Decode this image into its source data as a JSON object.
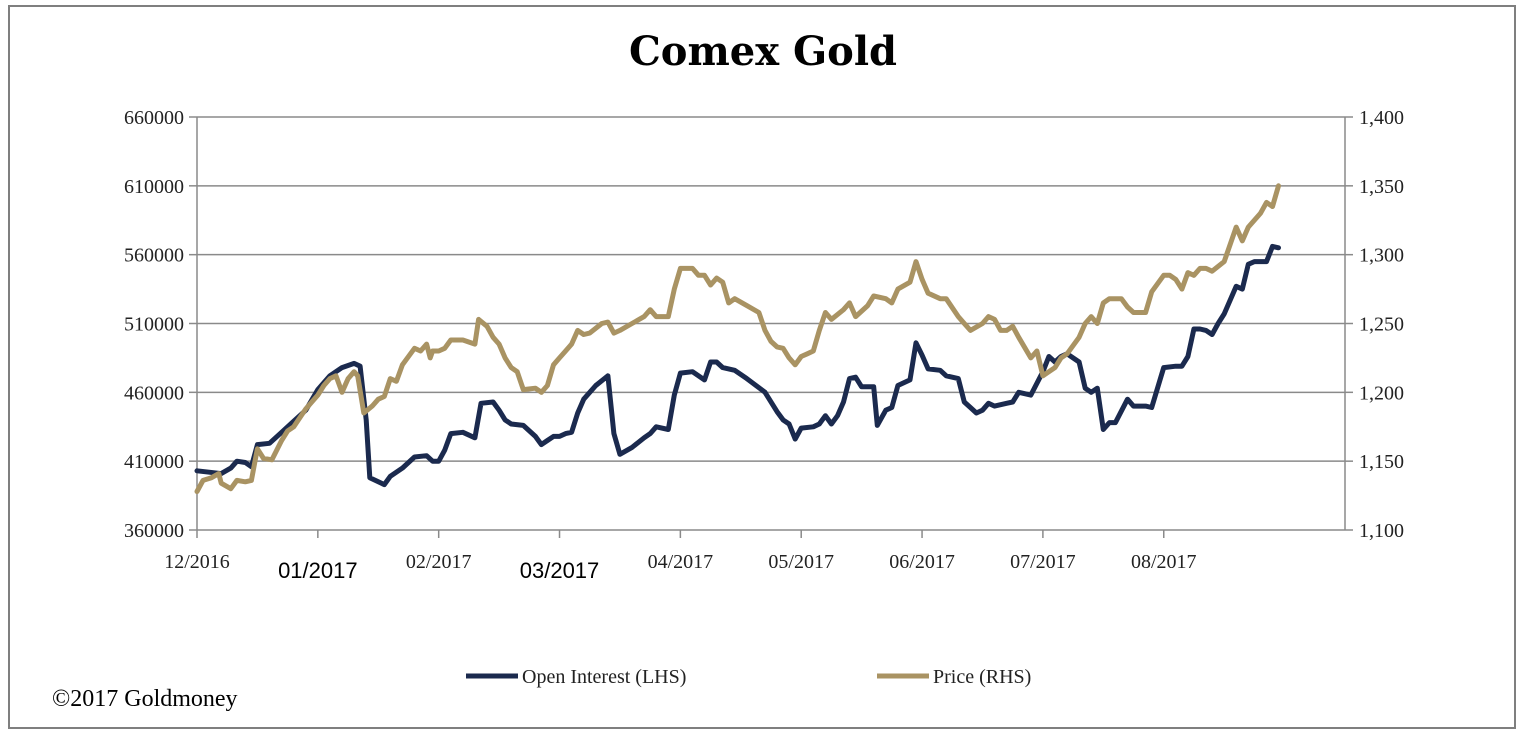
{
  "footer": {
    "copyright": "©2017 Goldmoney"
  },
  "chart_data": {
    "type": "line",
    "title": "Comex Gold",
    "xlabel": "",
    "ylabel_left": "",
    "ylabel_right": "",
    "grid": true,
    "legend_position": "bottom",
    "left_axis": {
      "ylim": [
        360000,
        660000
      ],
      "ticks": [
        "360000",
        "410000",
        "460000",
        "510000",
        "560000",
        "610000",
        "660000"
      ]
    },
    "right_axis": {
      "ylim": [
        1100,
        1400
      ],
      "ticks": [
        "1,100",
        "1,150",
        "1,200",
        "1,250",
        "1,300",
        "1,350",
        "1,400"
      ]
    },
    "x_ticks": [
      {
        "label": "12/2016",
        "month": 0,
        "style": "serif"
      },
      {
        "label": "01/2017",
        "month": 1,
        "style": "sans"
      },
      {
        "label": "02/2017",
        "month": 2,
        "style": "serif"
      },
      {
        "label": "03/2017",
        "month": 3,
        "style": "sans"
      },
      {
        "label": "04/2017",
        "month": 4,
        "style": "serif"
      },
      {
        "label": "05/2017",
        "month": 5,
        "style": "serif"
      },
      {
        "label": "06/2017",
        "month": 6,
        "style": "serif"
      },
      {
        "label": "07/2017",
        "month": 7,
        "style": "serif"
      },
      {
        "label": "08/2017",
        "month": 8,
        "style": "serif"
      }
    ],
    "x_range_months": [
      0,
      9.5
    ],
    "series": [
      {
        "name": "Open Interest (LHS)",
        "axis": "left",
        "color": "#1b2a4e",
        "points": [
          [
            0.0,
            403000
          ],
          [
            0.1,
            402000
          ],
          [
            0.2,
            401000
          ],
          [
            0.28,
            405000
          ],
          [
            0.33,
            410000
          ],
          [
            0.4,
            409000
          ],
          [
            0.45,
            406000
          ],
          [
            0.5,
            422000
          ],
          [
            0.6,
            423000
          ],
          [
            0.7,
            431000
          ],
          [
            0.8,
            439000
          ],
          [
            0.9,
            447000
          ],
          [
            1.0,
            462000
          ],
          [
            1.1,
            472000
          ],
          [
            1.2,
            478000
          ],
          [
            1.3,
            481000
          ],
          [
            1.35,
            479000
          ],
          [
            1.4,
            440000
          ],
          [
            1.43,
            398000
          ],
          [
            1.5,
            395000
          ],
          [
            1.55,
            393000
          ],
          [
            1.6,
            399000
          ],
          [
            1.7,
            405000
          ],
          [
            1.8,
            413000
          ],
          [
            1.9,
            414000
          ],
          [
            1.95,
            410000
          ],
          [
            2.0,
            410000
          ],
          [
            2.05,
            418000
          ],
          [
            2.1,
            430000
          ],
          [
            2.2,
            431000
          ],
          [
            2.3,
            427000
          ],
          [
            2.35,
            452000
          ],
          [
            2.45,
            453000
          ],
          [
            2.5,
            447000
          ],
          [
            2.55,
            440000
          ],
          [
            2.6,
            437000
          ],
          [
            2.7,
            436000
          ],
          [
            2.8,
            428000
          ],
          [
            2.85,
            422000
          ],
          [
            2.9,
            425000
          ],
          [
            2.95,
            428000
          ],
          [
            3.0,
            428000
          ],
          [
            3.05,
            430000
          ],
          [
            3.1,
            431000
          ],
          [
            3.15,
            445000
          ],
          [
            3.2,
            455000
          ],
          [
            3.3,
            465000
          ],
          [
            3.4,
            472000
          ],
          [
            3.45,
            430000
          ],
          [
            3.5,
            415000
          ],
          [
            3.6,
            420000
          ],
          [
            3.7,
            427000
          ],
          [
            3.75,
            430000
          ],
          [
            3.8,
            435000
          ],
          [
            3.9,
            433000
          ],
          [
            3.95,
            458000
          ],
          [
            4.0,
            474000
          ],
          [
            4.1,
            475000
          ],
          [
            4.2,
            469000
          ],
          [
            4.25,
            482000
          ],
          [
            4.3,
            482000
          ],
          [
            4.35,
            478000
          ],
          [
            4.45,
            476000
          ],
          [
            4.55,
            470000
          ],
          [
            4.7,
            460000
          ],
          [
            4.8,
            446000
          ],
          [
            4.85,
            440000
          ],
          [
            4.9,
            437000
          ],
          [
            4.95,
            426000
          ],
          [
            5.0,
            434000
          ],
          [
            5.1,
            435000
          ],
          [
            5.15,
            437000
          ],
          [
            5.2,
            443000
          ],
          [
            5.25,
            437000
          ],
          [
            5.3,
            443000
          ],
          [
            5.35,
            453000
          ],
          [
            5.4,
            470000
          ],
          [
            5.45,
            471000
          ],
          [
            5.5,
            464000
          ],
          [
            5.6,
            464000
          ],
          [
            5.63,
            436000
          ],
          [
            5.7,
            447000
          ],
          [
            5.75,
            449000
          ],
          [
            5.8,
            465000
          ],
          [
            5.9,
            469000
          ],
          [
            5.95,
            496000
          ],
          [
            6.0,
            487000
          ],
          [
            6.05,
            477000
          ],
          [
            6.15,
            476000
          ],
          [
            6.2,
            472000
          ],
          [
            6.3,
            470000
          ],
          [
            6.35,
            453000
          ],
          [
            6.4,
            449000
          ],
          [
            6.45,
            445000
          ],
          [
            6.5,
            447000
          ],
          [
            6.55,
            452000
          ],
          [
            6.6,
            450000
          ],
          [
            6.7,
            452000
          ],
          [
            6.75,
            453000
          ],
          [
            6.8,
            460000
          ],
          [
            6.9,
            458000
          ],
          [
            7.0,
            475000
          ],
          [
            7.05,
            486000
          ],
          [
            7.1,
            482000
          ],
          [
            7.15,
            486000
          ],
          [
            7.2,
            488000
          ],
          [
            7.3,
            482000
          ],
          [
            7.35,
            463000
          ],
          [
            7.4,
            460000
          ],
          [
            7.45,
            463000
          ],
          [
            7.5,
            433000
          ],
          [
            7.55,
            438000
          ],
          [
            7.6,
            438000
          ],
          [
            7.7,
            455000
          ],
          [
            7.75,
            450000
          ],
          [
            7.85,
            450000
          ],
          [
            7.9,
            449000
          ],
          [
            8.0,
            478000
          ],
          [
            8.1,
            479000
          ],
          [
            8.15,
            479000
          ],
          [
            8.2,
            486000
          ],
          [
            8.25,
            506000
          ],
          [
            8.3,
            506000
          ],
          [
            8.35,
            505000
          ],
          [
            8.4,
            502000
          ],
          [
            8.45,
            510000
          ],
          [
            8.5,
            517000
          ],
          [
            8.6,
            537000
          ],
          [
            8.65,
            535000
          ],
          [
            8.7,
            553000
          ],
          [
            8.75,
            555000
          ],
          [
            8.85,
            555000
          ],
          [
            8.9,
            566000
          ],
          [
            8.95,
            565000
          ]
        ]
      },
      {
        "name": "Price (RHS)",
        "axis": "right",
        "color": "#a99363",
        "points": [
          [
            0.0,
            1128
          ],
          [
            0.05,
            1136
          ],
          [
            0.12,
            1138
          ],
          [
            0.18,
            1141
          ],
          [
            0.2,
            1134
          ],
          [
            0.28,
            1130
          ],
          [
            0.33,
            1136
          ],
          [
            0.4,
            1135
          ],
          [
            0.45,
            1136
          ],
          [
            0.48,
            1150
          ],
          [
            0.5,
            1159
          ],
          [
            0.55,
            1152
          ],
          [
            0.62,
            1151
          ],
          [
            0.7,
            1165
          ],
          [
            0.75,
            1172
          ],
          [
            0.8,
            1175
          ],
          [
            0.9,
            1188
          ],
          [
            0.95,
            1193
          ],
          [
            1.0,
            1198
          ],
          [
            1.05,
            1205
          ],
          [
            1.1,
            1210
          ],
          [
            1.15,
            1212
          ],
          [
            1.2,
            1200
          ],
          [
            1.25,
            1210
          ],
          [
            1.3,
            1215
          ],
          [
            1.33,
            1212
          ],
          [
            1.38,
            1185
          ],
          [
            1.45,
            1190
          ],
          [
            1.5,
            1195
          ],
          [
            1.55,
            1197
          ],
          [
            1.6,
            1210
          ],
          [
            1.65,
            1208
          ],
          [
            1.7,
            1220
          ],
          [
            1.8,
            1232
          ],
          [
            1.85,
            1230
          ],
          [
            1.9,
            1235
          ],
          [
            1.93,
            1225
          ],
          [
            1.95,
            1230
          ],
          [
            2.0,
            1230
          ],
          [
            2.05,
            1232
          ],
          [
            2.1,
            1238
          ],
          [
            2.2,
            1238
          ],
          [
            2.3,
            1235
          ],
          [
            2.33,
            1253
          ],
          [
            2.4,
            1248
          ],
          [
            2.45,
            1240
          ],
          [
            2.5,
            1235
          ],
          [
            2.55,
            1225
          ],
          [
            2.6,
            1218
          ],
          [
            2.65,
            1215
          ],
          [
            2.7,
            1202
          ],
          [
            2.8,
            1203
          ],
          [
            2.85,
            1200
          ],
          [
            2.9,
            1205
          ],
          [
            2.95,
            1220
          ],
          [
            3.0,
            1225
          ],
          [
            3.05,
            1230
          ],
          [
            3.1,
            1235
          ],
          [
            3.15,
            1245
          ],
          [
            3.2,
            1242
          ],
          [
            3.25,
            1243
          ],
          [
            3.35,
            1250
          ],
          [
            3.4,
            1251
          ],
          [
            3.45,
            1243
          ],
          [
            3.5,
            1245
          ],
          [
            3.6,
            1250
          ],
          [
            3.7,
            1255
          ],
          [
            3.75,
            1260
          ],
          [
            3.8,
            1255
          ],
          [
            3.9,
            1255
          ],
          [
            3.95,
            1275
          ],
          [
            4.0,
            1290
          ],
          [
            4.1,
            1290
          ],
          [
            4.15,
            1285
          ],
          [
            4.2,
            1285
          ],
          [
            4.25,
            1278
          ],
          [
            4.3,
            1283
          ],
          [
            4.35,
            1280
          ],
          [
            4.4,
            1265
          ],
          [
            4.45,
            1268
          ],
          [
            4.55,
            1263
          ],
          [
            4.65,
            1258
          ],
          [
            4.7,
            1245
          ],
          [
            4.75,
            1237
          ],
          [
            4.8,
            1233
          ],
          [
            4.85,
            1232
          ],
          [
            4.9,
            1225
          ],
          [
            4.95,
            1220
          ],
          [
            5.0,
            1226
          ],
          [
            5.05,
            1228
          ],
          [
            5.1,
            1230
          ],
          [
            5.15,
            1245
          ],
          [
            5.2,
            1258
          ],
          [
            5.25,
            1253
          ],
          [
            5.35,
            1260
          ],
          [
            5.4,
            1265
          ],
          [
            5.45,
            1255
          ],
          [
            5.55,
            1263
          ],
          [
            5.6,
            1270
          ],
          [
            5.7,
            1268
          ],
          [
            5.75,
            1265
          ],
          [
            5.8,
            1275
          ],
          [
            5.9,
            1280
          ],
          [
            5.95,
            1295
          ],
          [
            6.0,
            1282
          ],
          [
            6.05,
            1272
          ],
          [
            6.15,
            1268
          ],
          [
            6.2,
            1268
          ],
          [
            6.3,
            1255
          ],
          [
            6.35,
            1250
          ],
          [
            6.4,
            1245
          ],
          [
            6.5,
            1250
          ],
          [
            6.55,
            1255
          ],
          [
            6.6,
            1253
          ],
          [
            6.65,
            1245
          ],
          [
            6.7,
            1245
          ],
          [
            6.75,
            1248
          ],
          [
            6.8,
            1240
          ],
          [
            6.9,
            1225
          ],
          [
            6.95,
            1230
          ],
          [
            7.0,
            1212
          ],
          [
            7.05,
            1215
          ],
          [
            7.1,
            1218
          ],
          [
            7.15,
            1225
          ],
          [
            7.2,
            1228
          ],
          [
            7.3,
            1240
          ],
          [
            7.35,
            1250
          ],
          [
            7.4,
            1255
          ],
          [
            7.45,
            1250
          ],
          [
            7.5,
            1265
          ],
          [
            7.55,
            1268
          ],
          [
            7.65,
            1268
          ],
          [
            7.7,
            1262
          ],
          [
            7.75,
            1258
          ],
          [
            7.85,
            1258
          ],
          [
            7.9,
            1273
          ],
          [
            8.0,
            1285
          ],
          [
            8.05,
            1285
          ],
          [
            8.1,
            1282
          ],
          [
            8.15,
            1275
          ],
          [
            8.2,
            1287
          ],
          [
            8.25,
            1285
          ],
          [
            8.3,
            1290
          ],
          [
            8.35,
            1290
          ],
          [
            8.4,
            1288
          ],
          [
            8.5,
            1295
          ],
          [
            8.6,
            1320
          ],
          [
            8.65,
            1310
          ],
          [
            8.7,
            1320
          ],
          [
            8.8,
            1330
          ],
          [
            8.85,
            1338
          ],
          [
            8.9,
            1335
          ],
          [
            8.95,
            1350
          ]
        ]
      }
    ]
  }
}
